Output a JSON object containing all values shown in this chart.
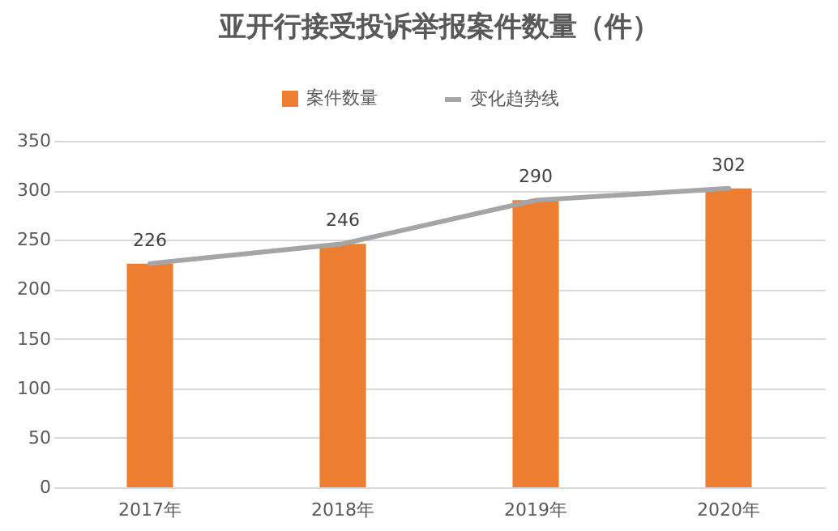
{
  "chart_data": {
    "type": "bar",
    "title": "亚开行接受投诉举报案件数量（件）",
    "categories": [
      "2017年",
      "2018年",
      "2019年",
      "2020年"
    ],
    "series": [
      {
        "name": "案件数量",
        "color": "#ed7d31",
        "values": [
          226,
          246,
          290,
          302
        ],
        "value_labels": [
          "226",
          "246",
          "290",
          "302"
        ]
      },
      {
        "name": "变化趋势线",
        "type": "line",
        "color": "#a5a5a5",
        "values": [
          226,
          246,
          290,
          302
        ]
      }
    ],
    "ylim": [
      0,
      350
    ],
    "yticks": [
      0,
      50,
      100,
      150,
      200,
      250,
      300,
      350
    ],
    "grid": "y",
    "legend": "top"
  }
}
